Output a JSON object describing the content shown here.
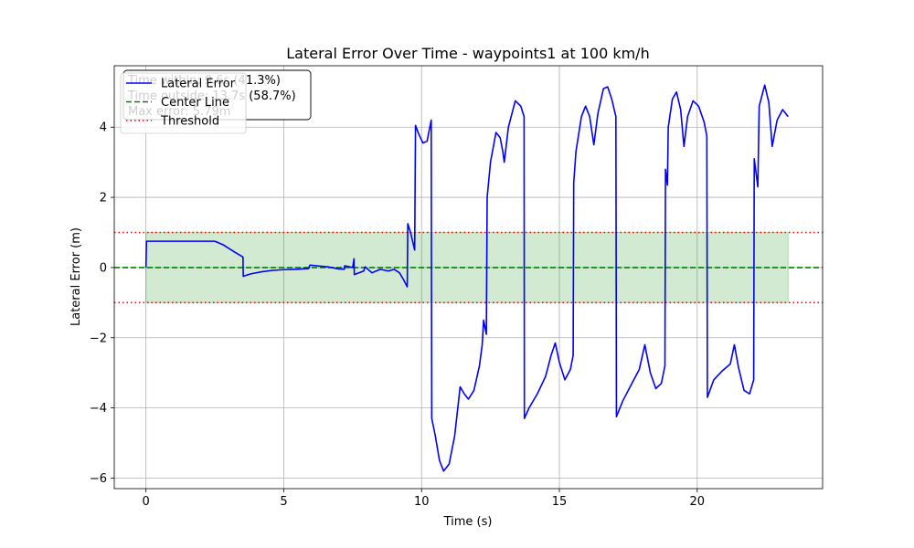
{
  "chart_data": {
    "type": "line",
    "title": "Lateral Error Over Time - waypoints1 at 100 km/h",
    "xlabel": "Time (s)",
    "ylabel": "Lateral Error (m)",
    "xlim": [
      -1.15,
      24.55
    ],
    "ylim": [
      -6.3,
      5.75
    ],
    "xticks": [
      0,
      5,
      10,
      15,
      20
    ],
    "yticks": [
      -6,
      -4,
      -2,
      0,
      2,
      4
    ],
    "grid": true,
    "legend_placement": "upper-left",
    "series": [
      {
        "name": "Lateral Error",
        "color": "#0000ff",
        "style": "solid",
        "points": [
          [
            0.0,
            0.0
          ],
          [
            0.02,
            0.75
          ],
          [
            0.5,
            0.75
          ],
          [
            1.0,
            0.75
          ],
          [
            1.5,
            0.75
          ],
          [
            2.0,
            0.75
          ],
          [
            2.5,
            0.75
          ],
          [
            2.8,
            0.65
          ],
          [
            3.2,
            0.45
          ],
          [
            3.52,
            0.3
          ],
          [
            3.53,
            -0.25
          ],
          [
            3.8,
            -0.18
          ],
          [
            4.2,
            -0.12
          ],
          [
            4.6,
            -0.08
          ],
          [
            5.0,
            -0.06
          ],
          [
            5.5,
            -0.05
          ],
          [
            5.9,
            -0.03
          ],
          [
            5.95,
            0.07
          ],
          [
            6.2,
            0.05
          ],
          [
            6.6,
            0.02
          ],
          [
            7.0,
            -0.04
          ],
          [
            7.2,
            -0.05
          ],
          [
            7.21,
            0.05
          ],
          [
            7.5,
            0.0
          ],
          [
            7.55,
            0.25
          ],
          [
            7.56,
            -0.2
          ],
          [
            7.9,
            -0.1
          ],
          [
            7.95,
            0.02
          ],
          [
            8.2,
            -0.15
          ],
          [
            8.5,
            -0.05
          ],
          [
            8.8,
            -0.1
          ],
          [
            9.0,
            -0.05
          ],
          [
            9.2,
            -0.15
          ],
          [
            9.35,
            -0.35
          ],
          [
            9.48,
            -0.55
          ],
          [
            9.5,
            1.25
          ],
          [
            9.6,
            1.0
          ],
          [
            9.75,
            0.5
          ],
          [
            9.78,
            4.05
          ],
          [
            9.9,
            3.8
          ],
          [
            10.05,
            3.55
          ],
          [
            10.2,
            3.6
          ],
          [
            10.35,
            4.2
          ],
          [
            10.37,
            -4.3
          ],
          [
            10.5,
            -4.8
          ],
          [
            10.65,
            -5.5
          ],
          [
            10.8,
            -5.8
          ],
          [
            11.0,
            -5.6
          ],
          [
            11.2,
            -4.8
          ],
          [
            11.4,
            -3.4
          ],
          [
            11.55,
            -3.6
          ],
          [
            11.7,
            -3.75
          ],
          [
            11.9,
            -3.5
          ],
          [
            12.1,
            -2.8
          ],
          [
            12.2,
            -2.2
          ],
          [
            12.25,
            -1.5
          ],
          [
            12.35,
            -1.9
          ],
          [
            12.38,
            2.0
          ],
          [
            12.5,
            3.0
          ],
          [
            12.7,
            3.85
          ],
          [
            12.85,
            3.7
          ],
          [
            12.95,
            3.3
          ],
          [
            13.0,
            3.0
          ],
          [
            13.15,
            4.0
          ],
          [
            13.4,
            4.75
          ],
          [
            13.6,
            4.6
          ],
          [
            13.72,
            4.3
          ],
          [
            13.73,
            -4.3
          ],
          [
            13.9,
            -4.0
          ],
          [
            14.2,
            -3.6
          ],
          [
            14.5,
            -3.1
          ],
          [
            14.7,
            -2.5
          ],
          [
            14.85,
            -2.15
          ],
          [
            15.0,
            -2.7
          ],
          [
            15.2,
            -3.2
          ],
          [
            15.4,
            -2.9
          ],
          [
            15.5,
            -2.5
          ],
          [
            15.52,
            2.4
          ],
          [
            15.6,
            3.3
          ],
          [
            15.8,
            4.3
          ],
          [
            15.95,
            4.6
          ],
          [
            16.1,
            4.3
          ],
          [
            16.25,
            3.5
          ],
          [
            16.4,
            4.4
          ],
          [
            16.6,
            5.1
          ],
          [
            16.75,
            5.15
          ],
          [
            16.9,
            4.8
          ],
          [
            17.05,
            4.3
          ],
          [
            17.07,
            -4.25
          ],
          [
            17.3,
            -3.8
          ],
          [
            17.6,
            -3.35
          ],
          [
            17.9,
            -2.9
          ],
          [
            18.1,
            -2.2
          ],
          [
            18.3,
            -3.0
          ],
          [
            18.5,
            -3.45
          ],
          [
            18.7,
            -3.3
          ],
          [
            18.83,
            -2.8
          ],
          [
            18.85,
            2.8
          ],
          [
            18.92,
            2.35
          ],
          [
            18.95,
            4.0
          ],
          [
            19.1,
            4.8
          ],
          [
            19.25,
            5.0
          ],
          [
            19.4,
            4.5
          ],
          [
            19.52,
            3.45
          ],
          [
            19.65,
            4.3
          ],
          [
            19.85,
            4.75
          ],
          [
            20.05,
            4.6
          ],
          [
            20.25,
            4.15
          ],
          [
            20.35,
            3.75
          ],
          [
            20.37,
            -3.7
          ],
          [
            20.6,
            -3.2
          ],
          [
            20.9,
            -2.95
          ],
          [
            21.2,
            -2.75
          ],
          [
            21.35,
            -2.2
          ],
          [
            21.5,
            -2.85
          ],
          [
            21.7,
            -3.5
          ],
          [
            21.9,
            -3.6
          ],
          [
            22.05,
            -3.2
          ],
          [
            22.07,
            3.1
          ],
          [
            22.2,
            2.3
          ],
          [
            22.25,
            4.6
          ],
          [
            22.45,
            5.2
          ],
          [
            22.6,
            4.7
          ],
          [
            22.72,
            3.45
          ],
          [
            22.9,
            4.2
          ],
          [
            23.1,
            4.5
          ],
          [
            23.3,
            4.3
          ]
        ]
      },
      {
        "name": "Center Line",
        "color": "#008000",
        "style": "dashed",
        "y": 0
      },
      {
        "name": "Threshold",
        "color": "#ff0000",
        "style": "dotted",
        "y_values": [
          1,
          -1
        ]
      }
    ],
    "threshold_band": {
      "lower": -1,
      "upper": 1,
      "x_range": [
        0,
        23.3
      ],
      "color": "#2ca02c"
    },
    "stats_box": [
      "Time within: 9.6s (41.3%)",
      "Time outside: 13.7s (58.7%)",
      "Max error: 5.79m"
    ]
  }
}
